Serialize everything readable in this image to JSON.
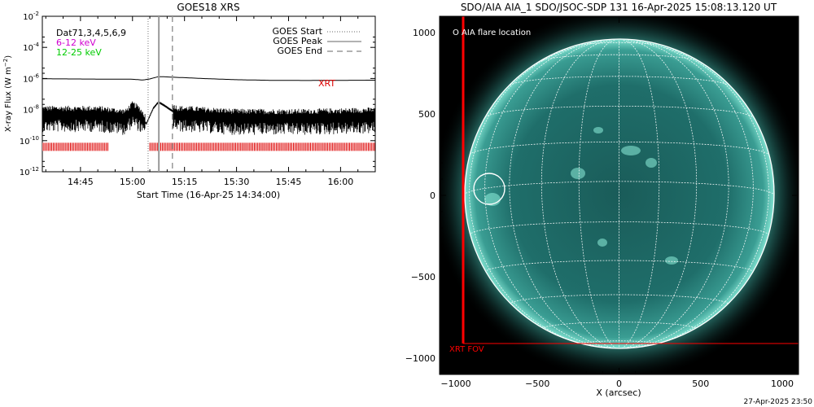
{
  "chart_data": [
    {
      "type": "line",
      "title": "GOES18 XRS",
      "xlabel": "Start Time (16-Apr-25 14:34:00)",
      "ylabel": "X-ray Flux (W m^-2)",
      "y_scale": "log",
      "ylim_exponent": [
        -12,
        -2
      ],
      "ytick_exponents": [
        -12,
        -10,
        -8,
        -6,
        -4,
        -2
      ],
      "xlim_minutes_after_1430": [
        4,
        100
      ],
      "x_ticks": [
        {
          "label": "14:45",
          "minutes_after_1430": 15
        },
        {
          "label": "15:00",
          "minutes_after_1430": 30
        },
        {
          "label": "15:15",
          "minutes_after_1430": 45
        },
        {
          "label": "15:30",
          "minutes_after_1430": 60
        },
        {
          "label": "15:45",
          "minutes_after_1430": 75
        },
        {
          "label": "16:00",
          "minutes_after_1430": 90
        }
      ],
      "legend_left": [
        {
          "label": "Dat71,3,4,5,6,9",
          "color": "#000000"
        },
        {
          "label": "6-12 keV",
          "color": "#d000d0"
        },
        {
          "label": "12-25 keV",
          "color": "#00cc00"
        }
      ],
      "legend_right": [
        {
          "label": "GOES Start",
          "style": "dotted"
        },
        {
          "label": "GOES Peak",
          "style": "solid"
        },
        {
          "label": "GOES End",
          "style": "dashed"
        }
      ],
      "event_lines_minutes_after_1430": {
        "start": 34.5,
        "peak": 37.6,
        "end": 41.5
      },
      "series": [
        {
          "color": "#000000",
          "x_minutes": [
            4,
            20,
            30,
            33,
            35,
            37.5,
            40,
            45,
            50,
            60,
            70,
            80,
            90,
            100
          ],
          "log10_flux": [
            -6.02,
            -6.04,
            -6.05,
            -6.1,
            -6.03,
            -5.88,
            -5.9,
            -5.95,
            -6.0,
            -6.08,
            -6.12,
            -6.13,
            -6.12,
            -6.11
          ]
        },
        {
          "color": "#000000",
          "x_minutes": [
            4,
            20,
            28,
            30,
            32,
            34,
            36,
            37.5,
            39,
            41,
            43,
            45,
            60,
            80,
            100
          ],
          "log10_flux": [
            -8.3,
            -8.3,
            -8.5,
            -8.0,
            -8.3,
            -8.9,
            -7.9,
            -7.5,
            -7.7,
            -8.0,
            -8.3,
            -8.3,
            -8.5,
            -8.5,
            -8.4
          ]
        }
      ],
      "xrt_label": "XRT",
      "xrt_coverage_minutes_after_1430": [
        [
          4,
          23
        ],
        [
          35,
          100
        ]
      ]
    },
    {
      "type": "image",
      "title": "SDO/AIA AIA_1 SDO/JSOC-SDP 131 16-Apr-2025 15:08:13.120 UT",
      "xlabel": "X (arcsec)",
      "xlim": [
        -1100,
        1100
      ],
      "ylim": [
        -1100,
        1100
      ],
      "x_ticks": [
        -1000,
        -500,
        0,
        500,
        1000
      ],
      "y_ticks": [
        -1000,
        -500,
        0,
        500,
        1000
      ],
      "x_tick_labels": [
        "−1000",
        "−500",
        "0",
        "500",
        "1000"
      ],
      "y_tick_labels": [
        "−1000",
        "−500",
        "0",
        "500",
        "1000"
      ],
      "solar_radius_arcsec": 950,
      "flare_label": "O AIA flare location",
      "flare_location_arcsec": [
        -800,
        10
      ],
      "flare_circle_radius_arcsec": 95,
      "xrt_fov_label": "XRT FOV",
      "xrt_fov_arcsec": {
        "x": [
          -960,
          1100
        ],
        "y": [
          -920,
          1100
        ]
      }
    }
  ],
  "footer": {
    "timestamp": "27-Apr-2025 23:50"
  },
  "colors": {
    "disk": "#1f6e6a",
    "disk_bright": "#5dbfb0",
    "background": "#000000",
    "xrt": "#ff0000",
    "grid": "#ffffff"
  }
}
